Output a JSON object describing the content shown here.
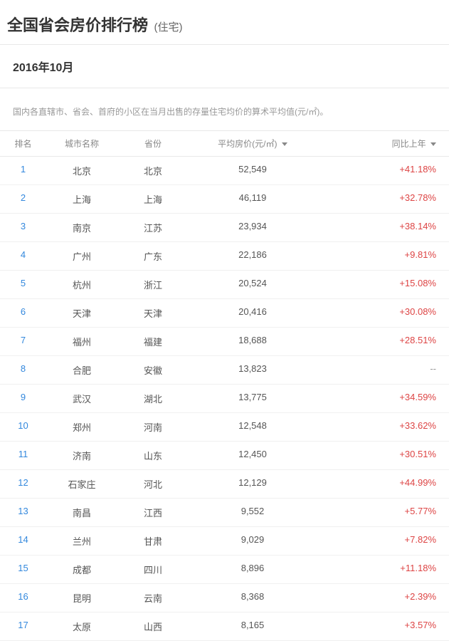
{
  "header": {
    "title_main": "全国省会房价排行榜",
    "title_sub": "(住宅)"
  },
  "date_bar": {
    "date_text": "2016年10月"
  },
  "description": "国内各直辖市、省会、首府的小区在当月出售的存量住宅均价的算术平均值(元/㎡)。",
  "table": {
    "columns": {
      "rank": "排名",
      "city": "城市名称",
      "province": "省份",
      "price": "平均房价(元/㎡)",
      "change": "同比上年"
    },
    "rows": [
      {
        "rank": "1",
        "city": "北京",
        "province": "北京",
        "price": "52,549",
        "change": "+41.18%"
      },
      {
        "rank": "2",
        "city": "上海",
        "province": "上海",
        "price": "46,119",
        "change": "+32.78%"
      },
      {
        "rank": "3",
        "city": "南京",
        "province": "江苏",
        "price": "23,934",
        "change": "+38.14%"
      },
      {
        "rank": "4",
        "city": "广州",
        "province": "广东",
        "price": "22,186",
        "change": "+9.81%"
      },
      {
        "rank": "5",
        "city": "杭州",
        "province": "浙江",
        "price": "20,524",
        "change": "+15.08%"
      },
      {
        "rank": "6",
        "city": "天津",
        "province": "天津",
        "price": "20,416",
        "change": "+30.08%"
      },
      {
        "rank": "7",
        "city": "福州",
        "province": "福建",
        "price": "18,688",
        "change": "+28.51%"
      },
      {
        "rank": "8",
        "city": "合肥",
        "province": "安徽",
        "price": "13,823",
        "change": "--"
      },
      {
        "rank": "9",
        "city": "武汉",
        "province": "湖北",
        "price": "13,775",
        "change": "+34.59%"
      },
      {
        "rank": "10",
        "city": "郑州",
        "province": "河南",
        "price": "12,548",
        "change": "+33.62%"
      },
      {
        "rank": "11",
        "city": "济南",
        "province": "山东",
        "price": "12,450",
        "change": "+30.51%"
      },
      {
        "rank": "12",
        "city": "石家庄",
        "province": "河北",
        "price": "12,129",
        "change": "+44.99%"
      },
      {
        "rank": "13",
        "city": "南昌",
        "province": "江西",
        "price": "9,552",
        "change": "+5.77%"
      },
      {
        "rank": "14",
        "city": "兰州",
        "province": "甘肃",
        "price": "9,029",
        "change": "+7.82%"
      },
      {
        "rank": "15",
        "city": "成都",
        "province": "四川",
        "price": "8,896",
        "change": "+11.18%"
      },
      {
        "rank": "16",
        "city": "昆明",
        "province": "云南",
        "price": "8,368",
        "change": "+2.39%"
      },
      {
        "rank": "17",
        "city": "太原",
        "province": "山西",
        "price": "8,165",
        "change": "+3.57%"
      }
    ]
  },
  "style": {
    "colors": {
      "title": "#333333",
      "subtitle": "#666666",
      "desc": "#999999",
      "header_text": "#888888",
      "cell_text": "#555555",
      "rank_link": "#3388dd",
      "change_up": "#dd4444",
      "border": "#e8e8e8",
      "row_border": "#f0f0f0",
      "background": "#ffffff"
    },
    "fonts": {
      "title_size": 22,
      "subtitle_size": 15,
      "date_size": 16,
      "desc_size": 12,
      "th_size": 12,
      "td_size": 13
    },
    "col_widths": {
      "rank": 65,
      "city": 100,
      "province": 100,
      "price": 180,
      "change": 186
    }
  }
}
